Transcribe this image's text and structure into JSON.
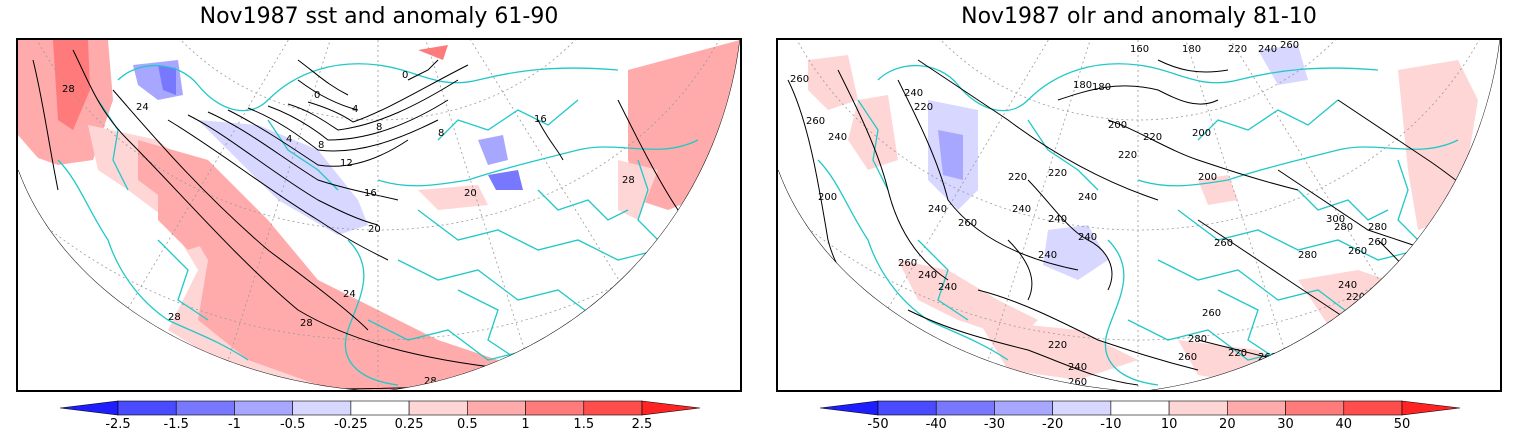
{
  "panels": [
    {
      "title": "Nov1987 sst and anomaly 61-90",
      "colorbar": {
        "colors": [
          "#1e1eff",
          "#4a4aff",
          "#7878ff",
          "#a7a7ff",
          "#d7d7ff",
          "#ffffff",
          "#ffd6d6",
          "#ffabab",
          "#ff7a7a",
          "#ff4d4d",
          "#ff2424"
        ],
        "labels": [
          "-2.5",
          "-1.5",
          "-1",
          "-0.5",
          "-0.25",
          "0.25",
          "0.5",
          "1",
          "1.5",
          "2.5"
        ]
      },
      "contour_labels": [
        "28",
        "24",
        "0",
        "0",
        "4",
        "4",
        "8",
        "8",
        "8",
        "12",
        "16",
        "16",
        "20",
        "20",
        "24",
        "28",
        "28",
        "28",
        "28"
      ]
    },
    {
      "title": "Nov1987 olr and anomaly 81-10",
      "colorbar": {
        "colors": [
          "#1e1eff",
          "#4a4aff",
          "#7878ff",
          "#a7a7ff",
          "#d7d7ff",
          "#ffffff",
          "#ffd6d6",
          "#ffabab",
          "#ff7a7a",
          "#ff4d4d",
          "#ff2424"
        ],
        "labels": [
          "-50",
          "-40",
          "-30",
          "-20",
          "-10",
          "10",
          "20",
          "30",
          "40",
          "50"
        ]
      },
      "contour_labels": [
        "180",
        "160",
        "180",
        "220",
        "240",
        "260",
        "260",
        "240",
        "220",
        "260",
        "240",
        "200",
        "180",
        "200",
        "220",
        "220",
        "200",
        "240",
        "240",
        "220",
        "240",
        "220",
        "240",
        "200",
        "240",
        "260",
        "260",
        "240",
        "240",
        "260",
        "280",
        "300",
        "280",
        "260",
        "260",
        "280",
        "240",
        "220",
        "200",
        "260",
        "260",
        "240",
        "280",
        "260",
        "220",
        "240",
        "260",
        "220"
      ]
    }
  ]
}
